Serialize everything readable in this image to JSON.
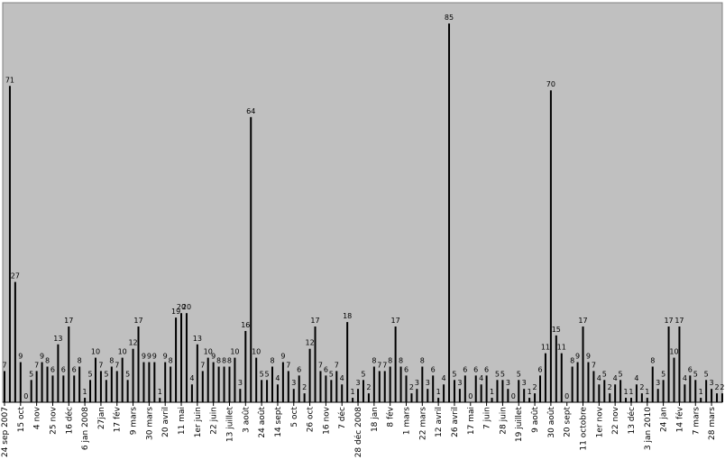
{
  "chart_data": {
    "type": "bar",
    "title": "",
    "xlabel": "",
    "ylabel": "",
    "ylim": [
      0,
      85
    ],
    "grid": false,
    "legend": "none",
    "colors": {
      "plot_background": "#c0c0c0",
      "bar": "#000000",
      "frame": "#808080"
    },
    "values": [
      7,
      71,
      27,
      9,
      0,
      5,
      7,
      9,
      8,
      6,
      13,
      6,
      17,
      6,
      8,
      1,
      5,
      10,
      7,
      5,
      8,
      7,
      10,
      5,
      12,
      17,
      9,
      9,
      9,
      1,
      9,
      8,
      19,
      20,
      20,
      4,
      13,
      7,
      10,
      9,
      8,
      8,
      8,
      10,
      3,
      16,
      64,
      10,
      5,
      5,
      8,
      4,
      9,
      7,
      3,
      6,
      2,
      12,
      17,
      7,
      6,
      5,
      7,
      4,
      18,
      1,
      3,
      5,
      2,
      8,
      7,
      7,
      8,
      17,
      8,
      6,
      2,
      3,
      8,
      3,
      6,
      1,
      4,
      85,
      5,
      3,
      6,
      0,
      6,
      4,
      6,
      1,
      5,
      5,
      3,
      0,
      5,
      3,
      1,
      2,
      6,
      11,
      70,
      15,
      11,
      0,
      8,
      9,
      17,
      9,
      7,
      4,
      5,
      2,
      4,
      5,
      1,
      1,
      4,
      2,
      1,
      8,
      3,
      5,
      17,
      10,
      17,
      4,
      6,
      5,
      1,
      5,
      3,
      2,
      2
    ],
    "tick_labels": [
      {
        "i": 0,
        "label": "24 sep 2007"
      },
      {
        "i": 3,
        "label": "15 oct"
      },
      {
        "i": 6,
        "label": "4 nov"
      },
      {
        "i": 9,
        "label": "25 nov"
      },
      {
        "i": 12,
        "label": "16 déc"
      },
      {
        "i": 15,
        "label": "6 jan 2008"
      },
      {
        "i": 18,
        "label": "27jan"
      },
      {
        "i": 21,
        "label": "17 fév"
      },
      {
        "i": 24,
        "label": "9 mars"
      },
      {
        "i": 27,
        "label": "30 mars"
      },
      {
        "i": 30,
        "label": "20 avril"
      },
      {
        "i": 33,
        "label": "11 mai"
      },
      {
        "i": 36,
        "label": "1er juin"
      },
      {
        "i": 39,
        "label": "22 juin"
      },
      {
        "i": 42,
        "label": "13 juillet"
      },
      {
        "i": 45,
        "label": "3 août"
      },
      {
        "i": 48,
        "label": "24 août"
      },
      {
        "i": 51,
        "label": "14 sept"
      },
      {
        "i": 54,
        "label": "5 oct"
      },
      {
        "i": 57,
        "label": "26 oct"
      },
      {
        "i": 60,
        "label": "16 nov"
      },
      {
        "i": 63,
        "label": "7 déc"
      },
      {
        "i": 66,
        "label": "28 déc 2008"
      },
      {
        "i": 69,
        "label": "18 jan"
      },
      {
        "i": 72,
        "label": "8 fév"
      },
      {
        "i": 75,
        "label": "1 mars"
      },
      {
        "i": 78,
        "label": "22 mars"
      },
      {
        "i": 81,
        "label": "12 avril"
      },
      {
        "i": 84,
        "label": "26 avril"
      },
      {
        "i": 87,
        "label": "17 mai"
      },
      {
        "i": 90,
        "label": "7 juin"
      },
      {
        "i": 93,
        "label": "28 juin"
      },
      {
        "i": 96,
        "label": "19 juillet"
      },
      {
        "i": 99,
        "label": "9 août"
      },
      {
        "i": 102,
        "label": "30 août"
      },
      {
        "i": 105,
        "label": "20 sept"
      },
      {
        "i": 108,
        "label": "11 octobre"
      },
      {
        "i": 111,
        "label": "1er nov"
      },
      {
        "i": 114,
        "label": "22 nov"
      },
      {
        "i": 117,
        "label": "13 déc"
      },
      {
        "i": 120,
        "label": "3 jan 2010"
      },
      {
        "i": 123,
        "label": "24 jan"
      },
      {
        "i": 126,
        "label": "14 fév"
      },
      {
        "i": 129,
        "label": "7 mars"
      },
      {
        "i": 132,
        "label": "28 mars"
      }
    ]
  }
}
